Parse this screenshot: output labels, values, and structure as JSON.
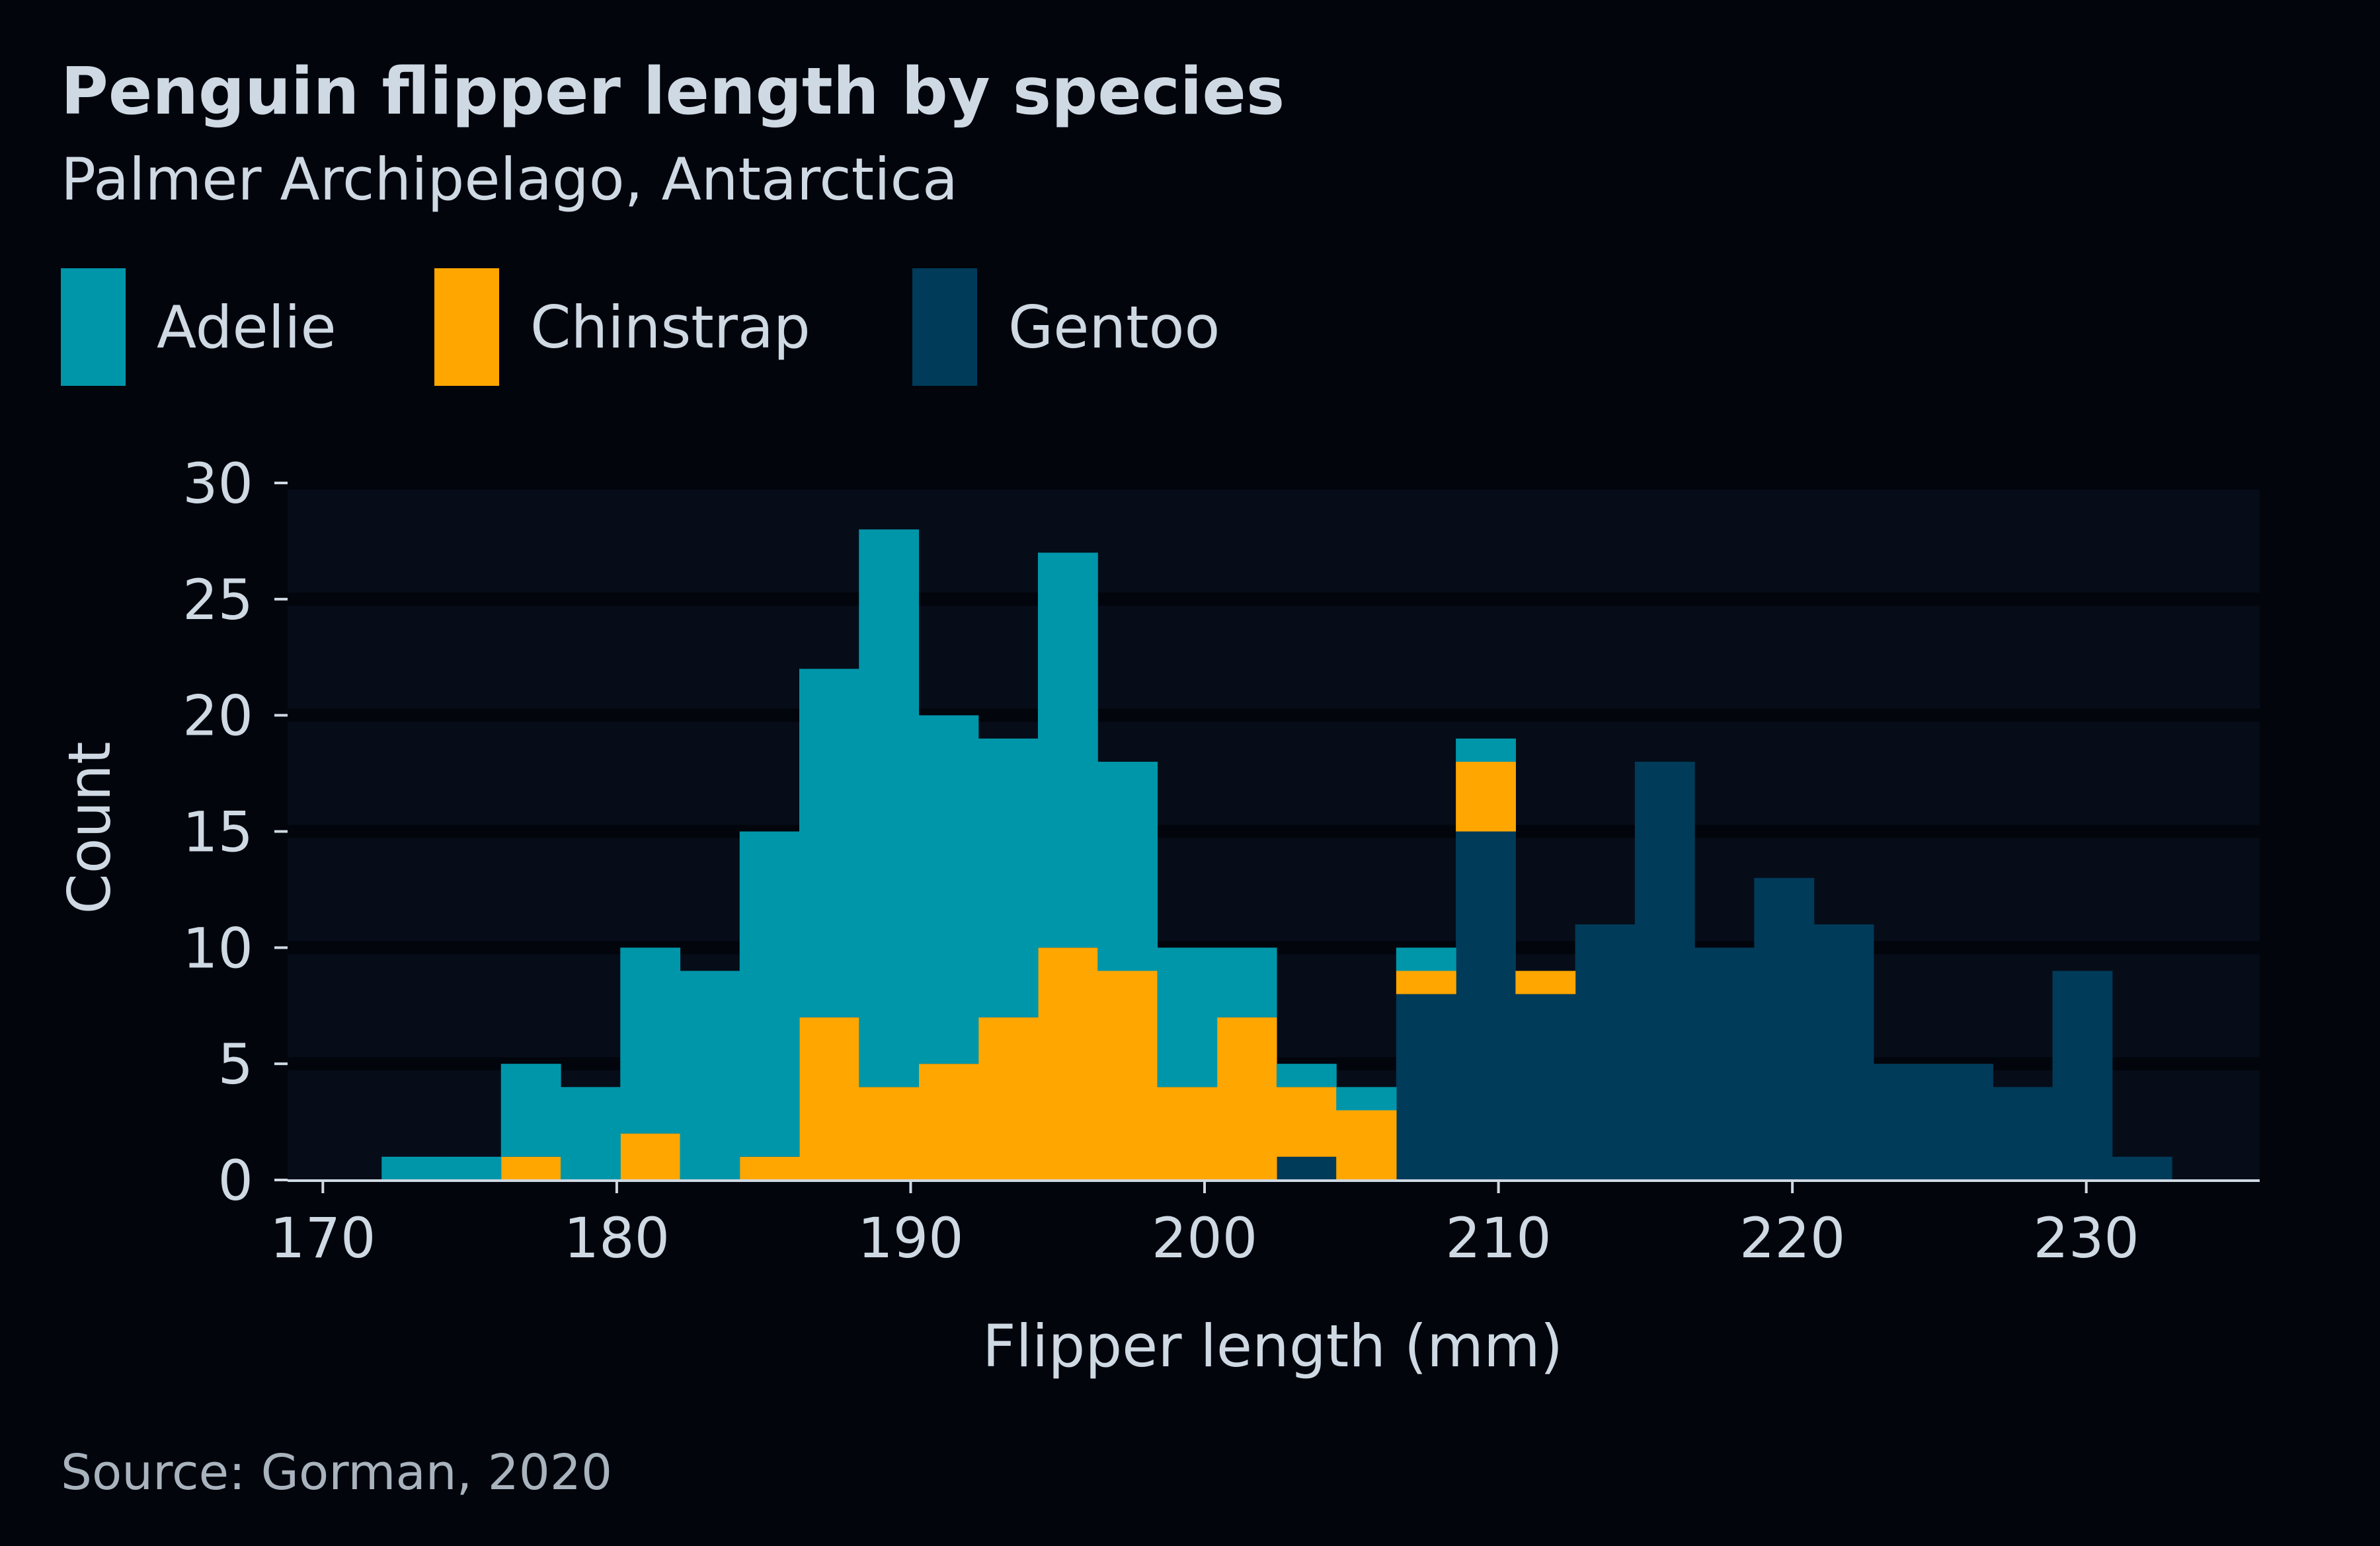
{
  "title": "Penguin flipper length by species",
  "subtitle": "Palmer Archipelago, Antarctica",
  "source": "Source: Gorman, 2020",
  "colors": {
    "background": "#02050c",
    "plot_background": "#060d19",
    "grid": "#02050c",
    "text": "#cfd9e3",
    "axis": "#cfd9e3"
  },
  "chart_data": {
    "type": "bar",
    "stacked": true,
    "histogram": true,
    "xlabel": "Flipper length (mm)",
    "ylabel": "Count",
    "xlim": [
      168.8,
      235.9
    ],
    "ylim": [
      0,
      30
    ],
    "xticks": [
      170,
      180,
      190,
      200,
      210,
      220,
      230
    ],
    "yticks": [
      0,
      5,
      10,
      15,
      20,
      25,
      30
    ],
    "grid": true,
    "legend_position": "top-left",
    "bins": [
      [
        172,
        174.03
      ],
      [
        174.03,
        176.06
      ],
      [
        176.06,
        178.09
      ],
      [
        178.09,
        180.12
      ],
      [
        180.12,
        182.15
      ],
      [
        182.15,
        184.18
      ],
      [
        184.18,
        186.21
      ],
      [
        186.21,
        188.24
      ],
      [
        188.24,
        190.27
      ],
      [
        190.27,
        192.3
      ],
      [
        192.3,
        194.33
      ],
      [
        194.33,
        196.36
      ],
      [
        196.36,
        198.39
      ],
      [
        198.39,
        200.42
      ],
      [
        200.42,
        202.45
      ],
      [
        202.45,
        204.48
      ],
      [
        204.48,
        206.52
      ],
      [
        206.52,
        208.55
      ],
      [
        208.55,
        210.58
      ],
      [
        210.58,
        212.61
      ],
      [
        212.61,
        214.64
      ],
      [
        214.64,
        216.67
      ],
      [
        216.67,
        218.7
      ],
      [
        218.7,
        220.73
      ],
      [
        220.73,
        222.76
      ],
      [
        222.76,
        224.79
      ],
      [
        224.79,
        226.82
      ],
      [
        226.82,
        228.85
      ],
      [
        228.85,
        230.88
      ],
      [
        230.88,
        232.91
      ]
    ],
    "series": [
      {
        "name": "Gentoo",
        "color": "#003b5a",
        "values": [
          0,
          0,
          0,
          0,
          0,
          0,
          0,
          0,
          0,
          0,
          0,
          0,
          0,
          0,
          0,
          1,
          0,
          8,
          15,
          8,
          11,
          18,
          10,
          13,
          11,
          5,
          5,
          4,
          9,
          1
        ]
      },
      {
        "name": "Chinstrap",
        "color": "#ffa600",
        "values": [
          0,
          0,
          1,
          0,
          2,
          0,
          1,
          7,
          4,
          5,
          7,
          10,
          9,
          4,
          7,
          3,
          3,
          1,
          3,
          1,
          0,
          0,
          0,
          0,
          0,
          0,
          0,
          0,
          0,
          0
        ]
      },
      {
        "name": "Adelie",
        "color": "#0096aa",
        "values": [
          1,
          1,
          4,
          4,
          8,
          9,
          14,
          15,
          24,
          15,
          12,
          17,
          9,
          6,
          3,
          1,
          1,
          1,
          1,
          0,
          0,
          0,
          0,
          0,
          0,
          0,
          0,
          0,
          0,
          0
        ]
      }
    ],
    "legend_order": [
      "Adelie",
      "Chinstrap",
      "Gentoo"
    ]
  }
}
